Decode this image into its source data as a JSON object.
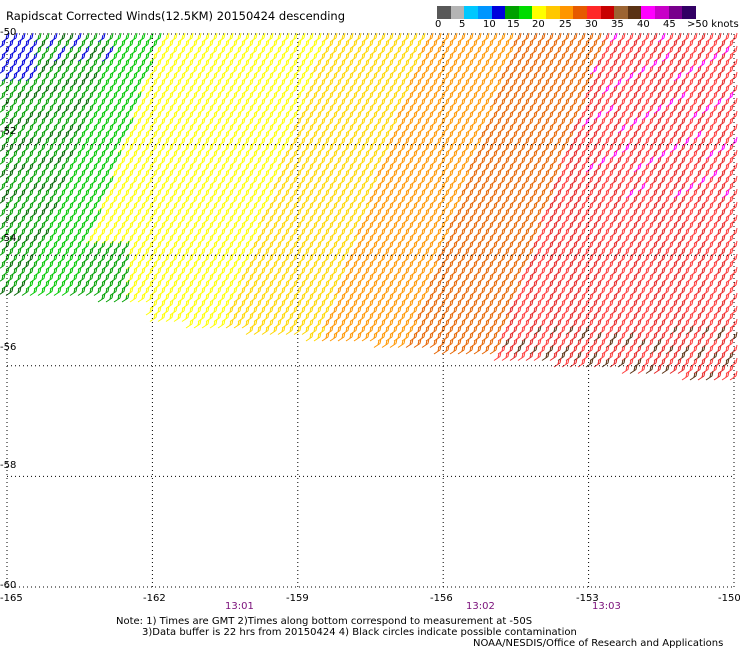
{
  "title": "Rapidscat Corrected Winds(12.5KM) 20150424 descending",
  "colorbar": {
    "colors": [
      "#585858",
      "#b4b4b4",
      "#00c8ff",
      "#0096ff",
      "#0000dc",
      "#00a000",
      "#00dc00",
      "#ffff00",
      "#ffc800",
      "#ff9600",
      "#e65a00",
      "#ff2828",
      "#c80000",
      "#9c6432",
      "#5a3214",
      "#ff00ff",
      "#c800c8",
      "#78008c",
      "#320064"
    ],
    "labels": [
      "0",
      "5",
      "10",
      "15",
      "20",
      "25",
      "30",
      "35",
      "40",
      "45",
      ">50 knots"
    ]
  },
  "axes": {
    "lon_labels": [
      "-165",
      "-162",
      "-159",
      "-156",
      "-153",
      "-150"
    ],
    "lat_labels": [
      "-50",
      "-52",
      "-54",
      "-56",
      "-58",
      "-60"
    ]
  },
  "times": [
    "13:01",
    "13:02",
    "13:03"
  ],
  "notes": {
    "line1": "Note: 1) Times are GMT 2)Times along bottom correspond to measurement at -50S",
    "line2": "3)Data buffer is 22 hrs from 20150424 4) Black circles indicate possible contamination",
    "credit": "NOAA/NESDIS/Office of Research and Applications"
  },
  "map": {
    "lon_range": [
      -165,
      -150
    ],
    "lat_range": [
      -60,
      -50
    ],
    "wind_speed_regions": [
      {
        "zone": "far west",
        "speed_knots": "10-20",
        "color": "#00a000"
      },
      {
        "zone": "northwest corner",
        "speed_knots": "10-15",
        "color": "#0000dc"
      },
      {
        "zone": "west-central",
        "speed_knots": "20-25",
        "color": "#ffff00"
      },
      {
        "zone": "central",
        "speed_knots": "25-30",
        "color": "#ffc800"
      },
      {
        "zone": "east",
        "speed_knots": "30-40",
        "color": "#ff2828"
      },
      {
        "zone": "southeast edge",
        "speed_knots": "35-45",
        "color": "#9c6432"
      }
    ]
  }
}
